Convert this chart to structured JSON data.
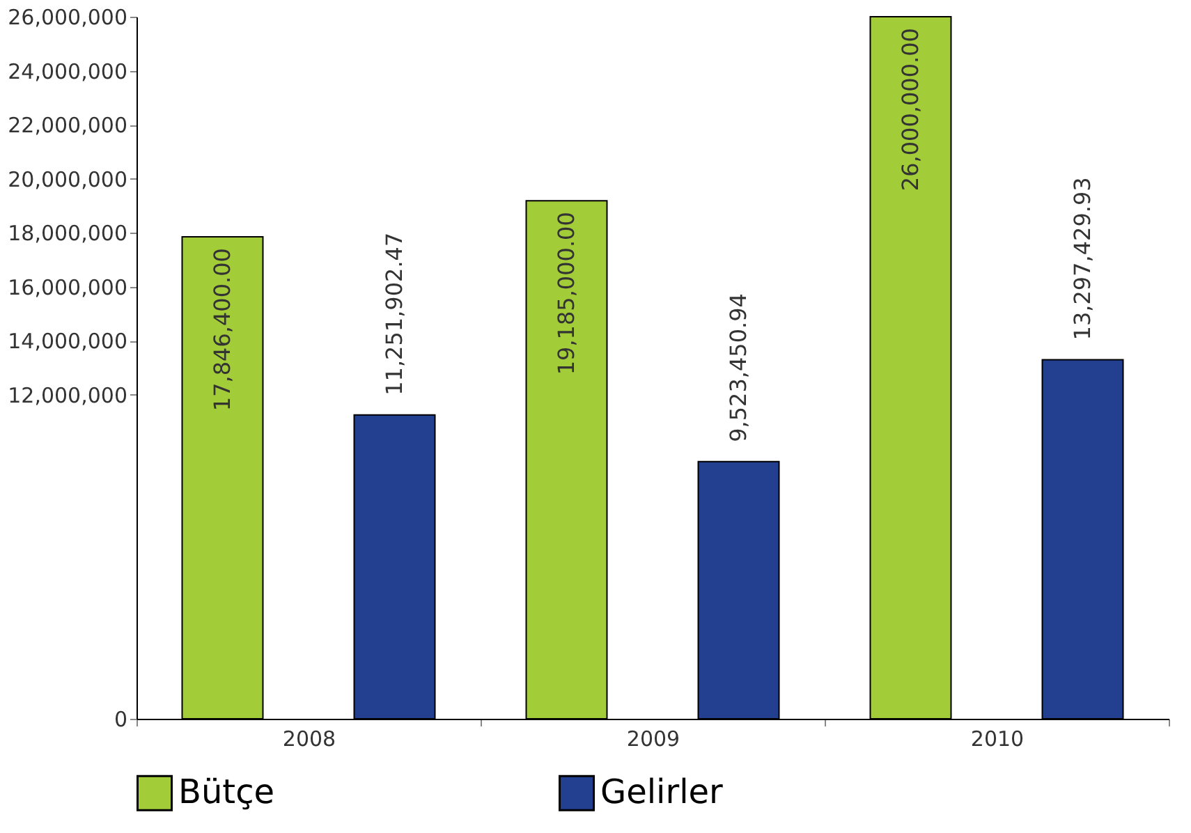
{
  "chart_data": {
    "type": "bar",
    "categories": [
      "2008",
      "2009",
      "2010"
    ],
    "series": [
      {
        "name": "Bütçe",
        "color": "#a3cc39",
        "values": [
          17846400.0,
          19185000.0,
          26000000.0
        ],
        "value_labels": [
          "17,846,400.00",
          "19,185,000.00",
          "26,000,000.00"
        ]
      },
      {
        "name": "Gelirler",
        "color": "#233f8f",
        "values": [
          11251902.47,
          9523450.94,
          13297429.93
        ],
        "value_labels": [
          "11,251,902.47",
          "9,523,450.94",
          "13,297,429.93"
        ]
      }
    ],
    "ylim": [
      0,
      26000000
    ],
    "yticks": [
      0,
      {
        "value": 12000000,
        "label": "12,000,000"
      },
      {
        "value": 14000000,
        "label": "14,000,000"
      },
      {
        "value": 16000000,
        "label": "16,000,000"
      },
      {
        "value": 18000000,
        "label": "18,000,000"
      },
      {
        "value": 20000000,
        "label": "20,000,000"
      },
      {
        "value": 22000000,
        "label": "22,000,000"
      },
      {
        "value": 24000000,
        "label": "24,000,000"
      },
      {
        "value": 26000000,
        "label": "26,000,000"
      }
    ],
    "grid": false,
    "legend": "bottom"
  }
}
